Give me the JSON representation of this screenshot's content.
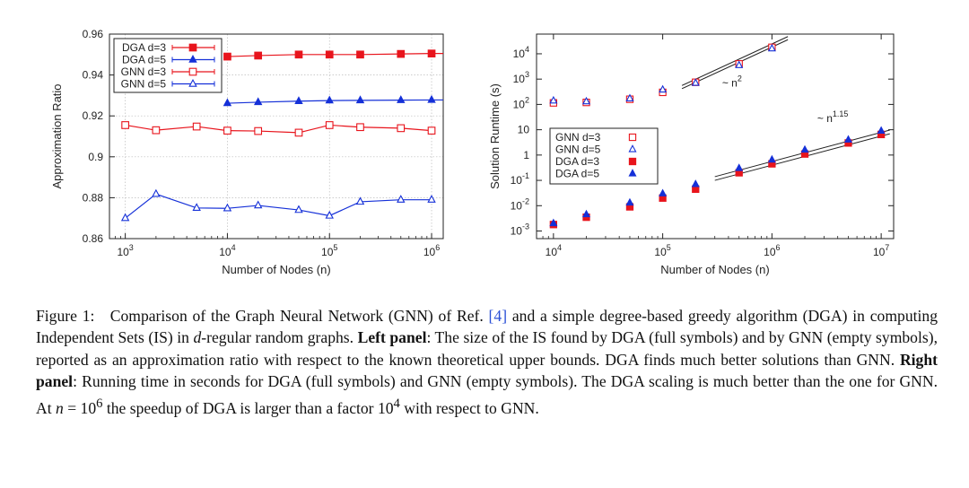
{
  "chart_data": [
    {
      "type": "line",
      "xscale": "log",
      "x": [
        1000,
        2000,
        5000,
        10000,
        20000,
        50000,
        100000,
        200000,
        500000,
        1000000
      ],
      "xlim": [
        700,
        1300000
      ],
      "ylim": [
        0.86,
        0.96
      ],
      "ylabel": "Approximation Ratio",
      "xlabel": "Number of Nodes (n)",
      "x_ticks": [
        {
          "v": 1000,
          "base": "10",
          "exp": "3"
        },
        {
          "v": 10000,
          "base": "10",
          "exp": "4"
        },
        {
          "v": 100000,
          "base": "10",
          "exp": "5"
        },
        {
          "v": 1000000,
          "base": "10",
          "exp": "6"
        }
      ],
      "y_ticks": [
        {
          "v": 0.86,
          "label": "0.86"
        },
        {
          "v": 0.88,
          "label": "0.88"
        },
        {
          "v": 0.9,
          "label": "0.9"
        },
        {
          "v": 0.92,
          "label": "0.92"
        },
        {
          "v": 0.94,
          "label": "0.94"
        },
        {
          "v": 0.96,
          "label": "0.96"
        }
      ],
      "grid": true,
      "legend_position": "top-left",
      "series": [
        {
          "name": "DGA d=3",
          "marker": "filled-square",
          "color": "#e8141c",
          "x": [
            10000,
            20000,
            50000,
            100000,
            200000,
            500000,
            1000000
          ],
          "values": [
            0.949,
            0.9495,
            0.95,
            0.95,
            0.95,
            0.9503,
            0.9505
          ],
          "extend_to": 1300000
        },
        {
          "name": "DGA d=5",
          "marker": "filled-triangle",
          "color": "#1530d8",
          "x": [
            10000,
            20000,
            50000,
            100000,
            200000,
            500000,
            1000000
          ],
          "values": [
            0.9262,
            0.9267,
            0.9272,
            0.9275,
            0.9276,
            0.9277,
            0.9278
          ],
          "extend_to": 1300000
        },
        {
          "name": "GNN d=3",
          "marker": "open-square",
          "color": "#e8141c",
          "x": [
            1000,
            2000,
            5000,
            10000,
            20000,
            50000,
            100000,
            200000,
            500000,
            1000000
          ],
          "values": [
            0.9155,
            0.913,
            0.9148,
            0.9128,
            0.9126,
            0.9118,
            0.9155,
            0.9145,
            0.914,
            0.9128
          ]
        },
        {
          "name": "GNN d=5",
          "marker": "open-triangle",
          "color": "#1530d8",
          "x": [
            1000,
            2000,
            5000,
            10000,
            20000,
            50000,
            100000,
            200000,
            500000,
            1000000
          ],
          "values": [
            0.87,
            0.8818,
            0.875,
            0.8748,
            0.8762,
            0.874,
            0.8712,
            0.878,
            0.879,
            0.879
          ]
        }
      ]
    },
    {
      "type": "scatter",
      "xscale": "log",
      "yscale": "log",
      "xlim": [
        7000,
        13000000
      ],
      "ylim": [
        0.0005,
        60000
      ],
      "ylabel": "Solution Runtime (s)",
      "xlabel": "Number of Nodes (n)",
      "x_ticks": [
        {
          "v": 10000,
          "base": "10",
          "exp": "4"
        },
        {
          "v": 100000,
          "base": "10",
          "exp": "5"
        },
        {
          "v": 1000000,
          "base": "10",
          "exp": "6"
        },
        {
          "v": 10000000,
          "base": "10",
          "exp": "7"
        }
      ],
      "y_ticks": [
        {
          "v": 0.001,
          "base": "10",
          "exp": "-3"
        },
        {
          "v": 0.01,
          "base": "10",
          "exp": "-2"
        },
        {
          "v": 0.1,
          "base": "10",
          "exp": "-1"
        },
        {
          "v": 1,
          "base": "1",
          "exp": ""
        },
        {
          "v": 10,
          "base": "10",
          "exp": ""
        },
        {
          "v": 100,
          "base": "10",
          "exp": "2"
        },
        {
          "v": 1000,
          "base": "10",
          "exp": "3"
        },
        {
          "v": 10000,
          "base": "10",
          "exp": "4"
        }
      ],
      "grid": false,
      "legend_position": "center-left",
      "series": [
        {
          "name": "GNN d=3",
          "marker": "open-square",
          "color": "#e8141c",
          "x": [
            10000,
            20000,
            50000,
            100000,
            200000,
            500000,
            1000000
          ],
          "values": [
            115,
            120,
            160,
            300,
            750,
            4000,
            18000
          ]
        },
        {
          "name": "GNN d=5",
          "marker": "open-triangle",
          "color": "#1530d8",
          "x": [
            10000,
            20000,
            50000,
            100000,
            200000,
            500000,
            1000000
          ],
          "values": [
            140,
            130,
            170,
            380,
            700,
            3500,
            16000
          ]
        },
        {
          "name": "DGA d=3",
          "marker": "filled-square",
          "color": "#e8141c",
          "x": [
            10000,
            20000,
            50000,
            100000,
            200000,
            500000,
            1000000,
            2000000,
            5000000,
            10000000
          ],
          "values": [
            0.0018,
            0.0035,
            0.009,
            0.02,
            0.045,
            0.2,
            0.45,
            1.1,
            3.0,
            6.5
          ]
        },
        {
          "name": "DGA d=5",
          "marker": "filled-triangle",
          "color": "#1530d8",
          "x": [
            10000,
            20000,
            50000,
            100000,
            200000,
            500000,
            1000000,
            2000000,
            5000000,
            10000000
          ],
          "values": [
            0.002,
            0.0045,
            0.013,
            0.03,
            0.07,
            0.3,
            0.65,
            1.6,
            4.0,
            9.0
          ]
        }
      ],
      "fit_lines": [
        {
          "label": "~ n",
          "exp": "2",
          "segments": [
            {
              "x": [
                150000,
                1400000
              ],
              "y": [
                420,
                36000
              ]
            },
            {
              "x": [
                150000,
                1400000
              ],
              "y": [
                560,
                48000
              ]
            }
          ],
          "label_at": [
            350000,
            500
          ]
        },
        {
          "label": "~ n",
          "exp": "1.15",
          "segments": [
            {
              "x": [
                300000,
                12000000
              ],
              "y": [
                0.1,
                6.9
              ]
            },
            {
              "x": [
                300000,
                12000000
              ],
              "y": [
                0.14,
                9.7
              ]
            }
          ],
          "label_at": [
            2600000,
            20
          ]
        }
      ]
    }
  ],
  "caption": {
    "lead": "Figure 1:",
    "p1": "Comparison of the Graph Neural Network (GNN) of Ref. ",
    "ref": "[4]",
    "p2": " and a simple degree-based greedy algorithm (DGA) in computing Independent Sets (IS) in ",
    "dvar": "d",
    "p3": "-regular random graphs. ",
    "left_label": "Left panel",
    "p4": ": The size of the IS found by DGA (full symbols) and by GNN (empty symbols), reported as an approximation ratio with respect to the known theoretical upper bounds. DGA finds much better solutions than GNN. ",
    "right_label": "Right panel",
    "p5": ": Running time in seconds for DGA (full symbols) and GNN (empty symbols). The DGA scaling is much better than the one for GNN. At ",
    "nvar": "n",
    "p6": " = 10",
    "exp6": "6",
    "p7": " the speedup of DGA is larger than a factor 10",
    "exp4": "4",
    "p8": " with respect to GNN."
  }
}
